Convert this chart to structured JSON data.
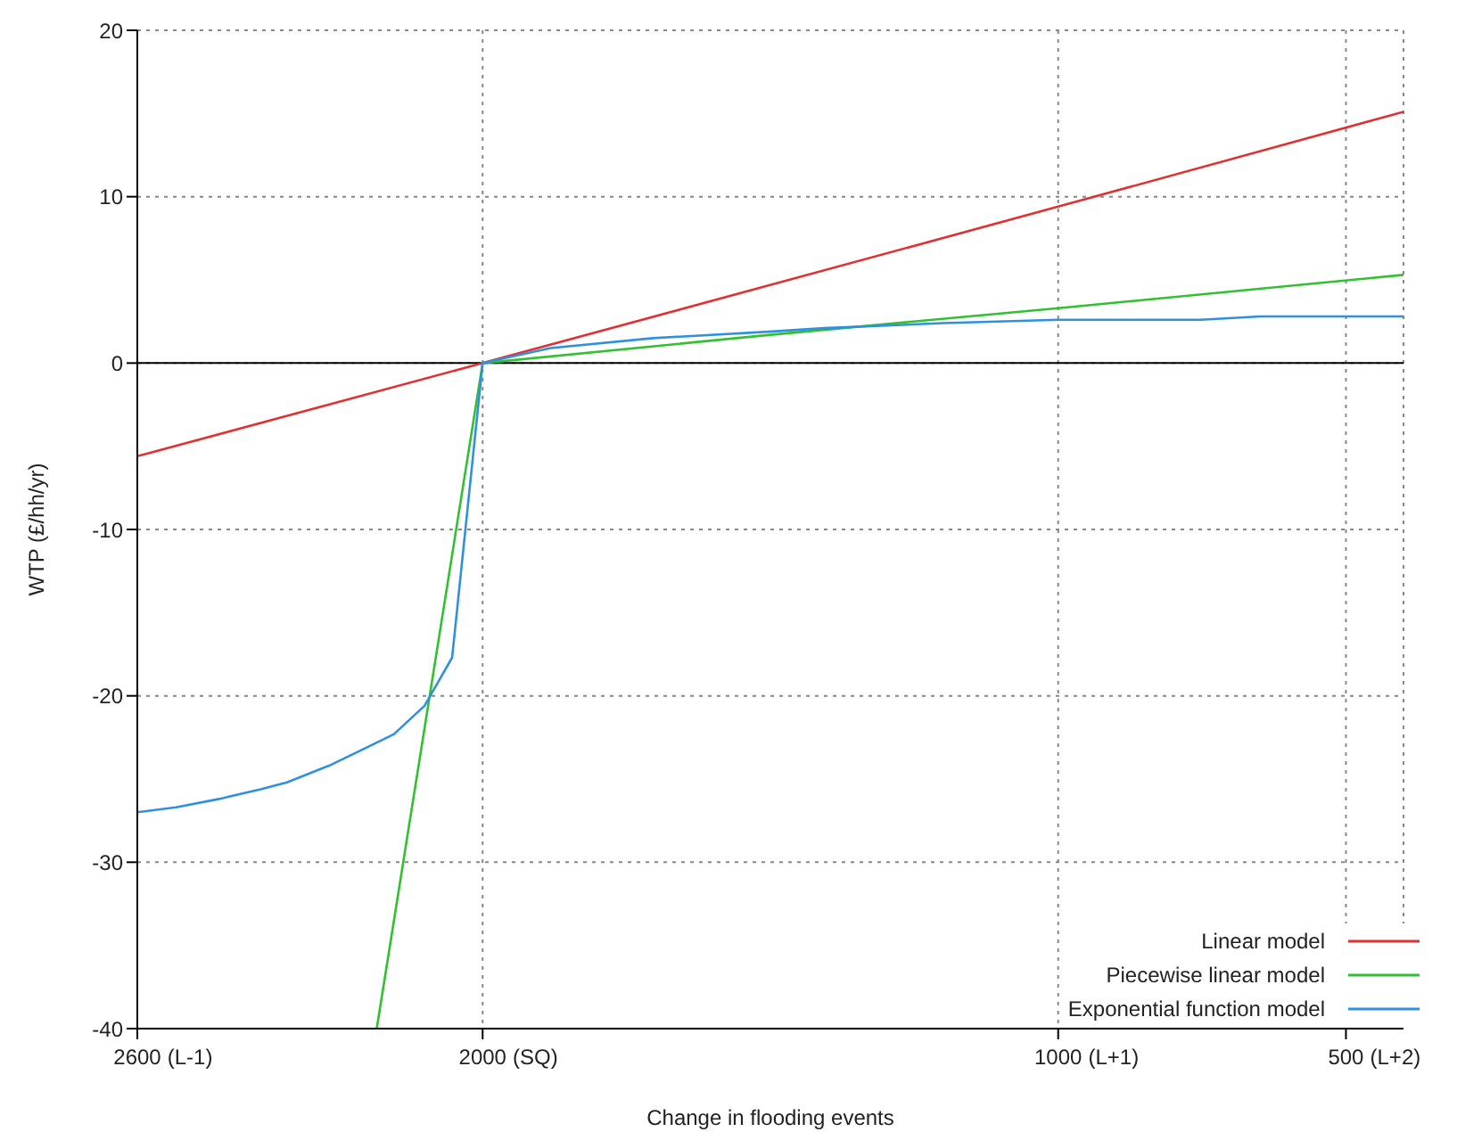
{
  "chart_data": {
    "type": "line",
    "xlabel": "Change in flooding events",
    "ylabel": "WTP (£/hh/yr)",
    "xlim": [
      2600,
      400
    ],
    "xticks": [
      2600,
      2000,
      1000,
      500
    ],
    "annotations": [
      "(L-1)",
      "(SQ)",
      "(L+1)",
      "(L+2)"
    ],
    "ylim": [
      -40,
      20
    ],
    "yticks": [
      -40,
      -30,
      -20,
      -10,
      0,
      10,
      20
    ],
    "grid": true,
    "legend": "bottom right",
    "marker": "none",
    "line_style": "solid",
    "ref_lines": [
      {
        "axis": "y",
        "value": 0,
        "color": "#000000",
        "line_style": "solid"
      }
    ],
    "series": [
      {
        "name": "Linear model",
        "color": "#e03030",
        "x": [
          2600,
          2000,
          1000,
          400
        ],
        "values": [
          -5.6,
          0,
          9.4,
          15.1
        ]
      },
      {
        "name": "Piecewise linear model",
        "color": "#30c030",
        "x": [
          2184,
          2000,
          1500,
          1000,
          400
        ],
        "values": [
          -40,
          0,
          1.7,
          3.3,
          5.3
        ]
      },
      {
        "name": "Exponential function model",
        "color": "#3090e0",
        "x": [
          2600,
          2533,
          2458,
          2384,
          2340,
          2267,
          2207,
          2154,
          2101,
          2053,
          2000,
          1882,
          1704,
          1496,
          1407,
          1200,
          1000,
          752,
          649,
          400
        ],
        "values": [
          -27,
          -26.7,
          -26.2,
          -25.6,
          -25.2,
          -24.2,
          -23.2,
          -22.3,
          -20.6,
          -17.7,
          0,
          0.9,
          1.5,
          1.9,
          2.1,
          2.4,
          2.6,
          2.6,
          2.8,
          2.8
        ]
      }
    ]
  }
}
